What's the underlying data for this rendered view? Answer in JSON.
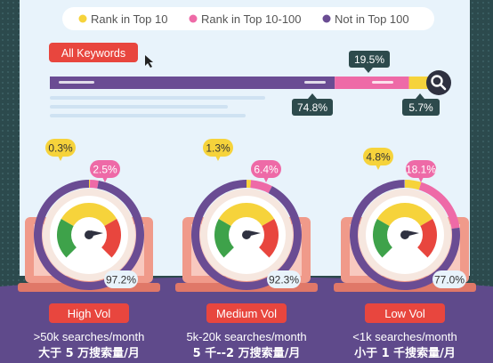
{
  "legend": {
    "items": [
      {
        "label": "Rank in Top 10",
        "color": "#f6d33b"
      },
      {
        "label": "Rank in Top 10-100",
        "color": "#ee6aa7"
      },
      {
        "label": "Not in Top 100",
        "color": "#6a4c93"
      }
    ]
  },
  "keyword_bar": {
    "button_label": "All Keywords",
    "values": [
      {
        "label": "74.8%",
        "value": 74.8,
        "color": "#6a4c93"
      },
      {
        "label": "19.5%",
        "value": 19.5,
        "color": "#ee6aa7"
      },
      {
        "label": "5.7%",
        "value": 5.7,
        "color": "#f6d33b"
      }
    ]
  },
  "chart_data": [
    {
      "type": "pie",
      "label": "High Vol",
      "caption": ">50k searches/month",
      "caption_cn": "大于 5 万搜索量/月",
      "slices": [
        {
          "name": "Rank in Top 10",
          "value": 0.3,
          "label": "0.3%",
          "color": "#f6d33b"
        },
        {
          "name": "Rank in Top 10-100",
          "value": 2.5,
          "label": "2.5%",
          "color": "#ee6aa7"
        },
        {
          "name": "Not in Top 100",
          "value": 97.2,
          "label": "97.2%",
          "color": "#6a4c93"
        }
      ]
    },
    {
      "type": "pie",
      "label": "Medium Vol",
      "caption": "5k-20k searches/month",
      "caption_cn": "5 千--2 万搜索量/月",
      "slices": [
        {
          "name": "Rank in Top 10",
          "value": 1.3,
          "label": "1.3%",
          "color": "#f6d33b"
        },
        {
          "name": "Rank in Top 10-100",
          "value": 6.4,
          "label": "6.4%",
          "color": "#ee6aa7"
        },
        {
          "name": "Not in Top 100",
          "value": 92.3,
          "label": "92.3%",
          "color": "#6a4c93"
        }
      ]
    },
    {
      "type": "pie",
      "label": "Low Vol",
      "caption": "<1k searches/month",
      "caption_cn": "小于 1 千搜索量/月",
      "slices": [
        {
          "name": "Rank in Top 10",
          "value": 4.8,
          "label": "4.8%",
          "color": "#f6d33b"
        },
        {
          "name": "Rank in Top 10-100",
          "value": 18.1,
          "label": "18.1%",
          "color": "#ee6aa7"
        },
        {
          "name": "Not in Top 100",
          "value": 77.0,
          "label": "77.0%",
          "color": "#6a4c93"
        }
      ]
    }
  ]
}
